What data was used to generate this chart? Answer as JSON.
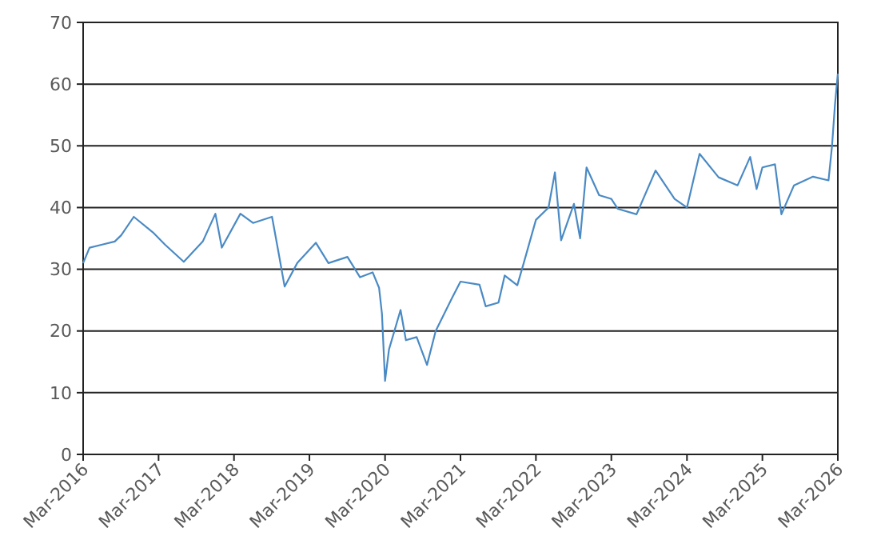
{
  "chart_data": {
    "type": "line",
    "grid": "y",
    "line_style": "solid",
    "marker": "none",
    "xlim": [
      "2016-03",
      "2026-03"
    ],
    "xticks": [
      {
        "value": "2016-03",
        "label": "Mar-2016"
      },
      {
        "value": "2017-03",
        "label": "Mar-2017"
      },
      {
        "value": "2018-03",
        "label": "Mar-2018"
      },
      {
        "value": "2019-03",
        "label": "Mar-2019"
      },
      {
        "value": "2020-03",
        "label": "Mar-2020"
      },
      {
        "value": "2021-03",
        "label": "Mar-2021"
      },
      {
        "value": "2022-03",
        "label": "Mar-2022"
      },
      {
        "value": "2023-03",
        "label": "Mar-2023"
      },
      {
        "value": "2024-03",
        "label": "Mar-2024"
      },
      {
        "value": "2025-03",
        "label": "Mar-2025"
      },
      {
        "value": "2026-03",
        "label": "Mar-2026"
      }
    ],
    "ylim": [
      0,
      70
    ],
    "yticks": [
      0,
      10,
      20,
      30,
      40,
      50,
      60,
      70
    ],
    "x": [
      "2016-03",
      "2016-04",
      "2016-06",
      "2016-08",
      "2016-09",
      "2016-11",
      "2017-02",
      "2017-04",
      "2017-07",
      "2017-10",
      "2017-12",
      "2018-01",
      "2018-04",
      "2018-06",
      "2018-09",
      "2018-10",
      "2018-11",
      "2019-01",
      "2019-04",
      "2019-06",
      "2019-09",
      "2019-11",
      "2020-01",
      "2020-02-01",
      "2020-02-15",
      "2020-03-01",
      "2020-03-20",
      "2020-05-15",
      "2020-06-10",
      "2020-08",
      "2020-09-20",
      "2020-11",
      "2021-01-20",
      "2021-03",
      "2021-06",
      "2021-07",
      "2021-09",
      "2021-10",
      "2021-12",
      "2022-01",
      "2022-03",
      "2022-05",
      "2022-06",
      "2022-07",
      "2022-09",
      "2022-10",
      "2022-11",
      "2023-01",
      "2023-03",
      "2023-04",
      "2023-07",
      "2023-10",
      "2024-01",
      "2024-03",
      "2024-05",
      "2024-08",
      "2024-11",
      "2025-01",
      "2025-02",
      "2025-03",
      "2025-05",
      "2025-06",
      "2025-08",
      "2025-11",
      "2026-01-15",
      "2026-02-01",
      "2026-02-15",
      "2026-03-01"
    ],
    "series": [
      {
        "color": "#4a8ac4",
        "values": [
          31,
          33.5,
          34,
          34.5,
          35.5,
          38.5,
          36,
          34,
          31.2,
          34.5,
          39,
          33.5,
          39,
          37.5,
          38.5,
          33,
          27.2,
          31,
          34.3,
          31,
          32,
          28.7,
          29.5,
          27,
          22.8,
          11.9,
          17,
          23.4,
          18.5,
          19,
          14.5,
          20,
          25.4,
          28,
          27.5,
          24,
          24.6,
          29,
          27.4,
          31,
          38,
          40,
          45.7,
          34.7,
          40.6,
          35,
          46.5,
          42,
          41.4,
          39.8,
          38.9,
          46,
          41.4,
          40,
          48.7,
          44.9,
          43.6,
          48.2,
          43,
          46.5,
          47,
          38.9,
          43.6,
          45,
          44.4,
          50,
          56.6,
          61.7
        ]
      }
    ]
  }
}
